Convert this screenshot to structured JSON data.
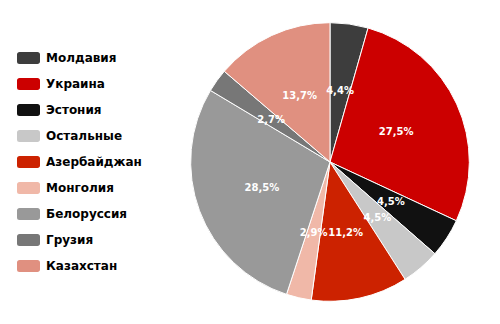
{
  "chart_data": {
    "type": "pie",
    "categories": [
      "Молдавия",
      "Украина",
      "Эстония",
      "Остальные",
      "Азербайджан",
      "Монголия",
      "Белоруссия",
      "Грузия",
      "Казахстан"
    ],
    "values": [
      4.4,
      27.5,
      4.5,
      4.5,
      11.2,
      2.9,
      28.5,
      2.7,
      13.7
    ],
    "value_labels": [
      "4,4%",
      "27,5%",
      "4,5%",
      "4,5%",
      "11,2%",
      "2,9%",
      "28,5%",
      "2,7%",
      "13,7%"
    ],
    "colors": [
      "#3d3d3d",
      "#cc0000",
      "#111111",
      "#c8c8c8",
      "#cc2200",
      "#f0b8a8",
      "#999999",
      "#777777",
      "#e09080"
    ],
    "data_labels": true,
    "legend": "left"
  }
}
